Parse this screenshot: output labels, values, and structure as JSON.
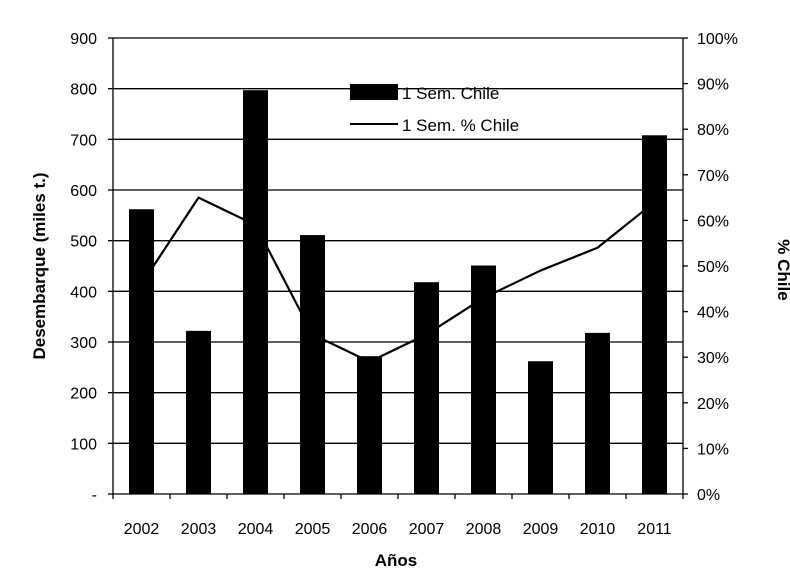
{
  "chart_data": {
    "type": "bar",
    "title": "",
    "xlabel": "Años",
    "ylabel": "Desembarque (miles t.)",
    "y2label": "% Chile",
    "categories": [
      "2002",
      "2003",
      "2004",
      "2005",
      "2006",
      "2007",
      "2008",
      "2009",
      "2010",
      "2011"
    ],
    "series": [
      {
        "name": "1 Sem. Chile",
        "kind": "bar",
        "axis": "left",
        "values": [
          562,
          322,
          797,
          511,
          272,
          418,
          451,
          262,
          318,
          708
        ]
      },
      {
        "name": "1 Sem. % Chile",
        "kind": "line",
        "axis": "right",
        "values": [
          46,
          65,
          59,
          35,
          29,
          35,
          43,
          49,
          54,
          64
        ]
      }
    ],
    "ylim": [
      0,
      900
    ],
    "y_ticks": [
      0,
      100,
      200,
      300,
      400,
      500,
      600,
      700,
      800,
      900
    ],
    "y_tick_labels": [
      "-",
      "100",
      "200",
      "300",
      "400",
      "500",
      "600",
      "700",
      "800",
      "900"
    ],
    "y2lim": [
      0,
      100
    ],
    "y2_ticks": [
      0,
      10,
      20,
      30,
      40,
      50,
      60,
      70,
      80,
      90,
      100
    ],
    "y2_tick_labels": [
      "0%",
      "10%",
      "20%",
      "30%",
      "40%",
      "50%",
      "60%",
      "70%",
      "80%",
      "90%",
      "100%"
    ],
    "grid": true,
    "legend_position": "top-center",
    "colors": {
      "bars": "#000000",
      "line": "#000000",
      "grid": "#000000"
    }
  }
}
